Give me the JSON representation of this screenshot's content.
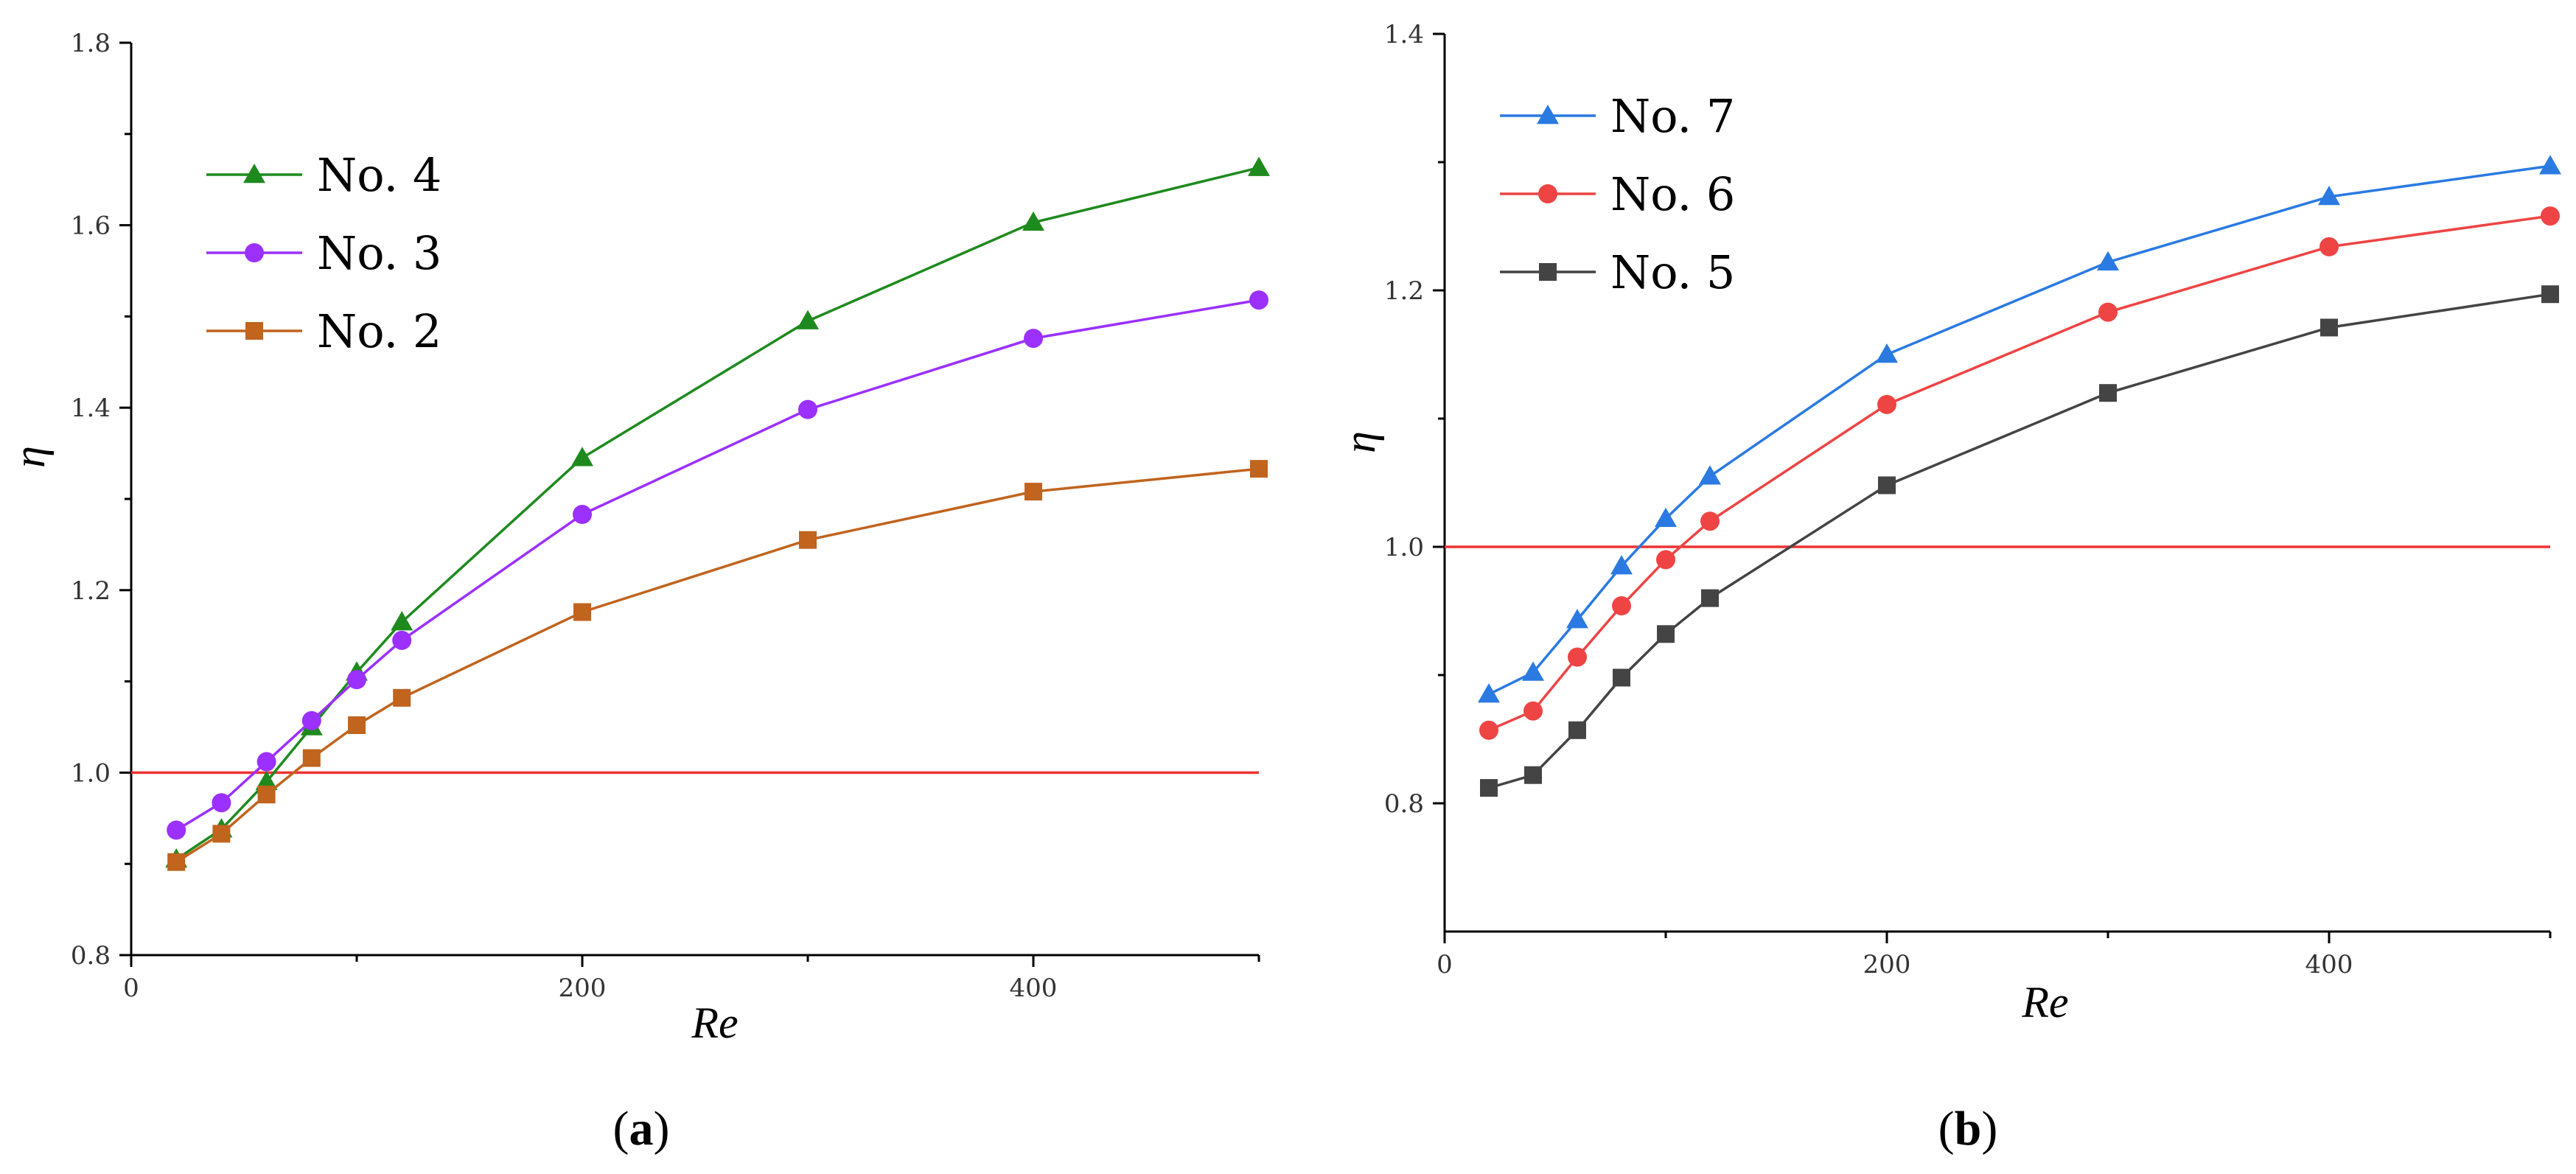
{
  "chart_data": [
    {
      "type": "line",
      "caption_prefix": "(",
      "caption_letter": "a",
      "caption_suffix": ")",
      "xlabel": "Re",
      "ylabel": "η",
      "xlim": [
        0,
        500
      ],
      "ylim": [
        0.8,
        1.8
      ],
      "xticks": [
        0,
        200,
        400
      ],
      "xtick_labels": [
        "0",
        "200",
        "400"
      ],
      "yticks": [
        0.8,
        1.0,
        1.2,
        1.4,
        1.6,
        1.8
      ],
      "ytick_labels": [
        "0.8",
        "1.0",
        "1.2",
        "1.4",
        "1.6",
        "1.8"
      ],
      "reference_line": {
        "y": 1.0,
        "color": "#ee3333"
      },
      "legend_position": "top-left",
      "x": [
        20,
        40,
        60,
        80,
        100,
        120,
        200,
        300,
        400,
        500
      ],
      "series": [
        {
          "name": "No. 4",
          "marker": "triangle",
          "color": "#1e8a1e",
          "values": [
            0.905,
            0.938,
            0.99,
            1.05,
            1.11,
            1.165,
            1.345,
            1.495,
            1.603,
            1.663
          ]
        },
        {
          "name": "No. 3",
          "marker": "circle",
          "color": "#9b30ff",
          "values": [
            0.937,
            0.967,
            1.012,
            1.057,
            1.102,
            1.145,
            1.283,
            1.398,
            1.476,
            1.518
          ]
        },
        {
          "name": "No. 2",
          "marker": "square",
          "color": "#c0641e",
          "values": [
            0.902,
            0.933,
            0.976,
            1.016,
            1.052,
            1.082,
            1.176,
            1.255,
            1.308,
            1.333
          ]
        }
      ]
    },
    {
      "type": "line",
      "caption_prefix": "(",
      "caption_letter": "b",
      "caption_suffix": ")",
      "xlabel": "Re",
      "ylabel": "η",
      "xlim": [
        0,
        500
      ],
      "ylim": [
        0.7,
        1.4
      ],
      "xticks": [
        0,
        200,
        400
      ],
      "xtick_labels": [
        "0",
        "200",
        "400"
      ],
      "yticks": [
        0.8,
        1.0,
        1.2,
        1.4
      ],
      "ytick_labels": [
        "0.8",
        "1.0",
        "1.2",
        "1.4"
      ],
      "reference_line": {
        "y": 1.0,
        "color": "#ee3333"
      },
      "legend_position": "top-left",
      "x": [
        20,
        40,
        60,
        80,
        100,
        120,
        200,
        300,
        400,
        500
      ],
      "series": [
        {
          "name": "No. 7",
          "marker": "triangle",
          "color": "#2a7ae2",
          "values": [
            0.885,
            0.902,
            0.943,
            0.985,
            1.022,
            1.055,
            1.15,
            1.222,
            1.273,
            1.297
          ]
        },
        {
          "name": "No. 6",
          "marker": "circle",
          "color": "#ee4444",
          "values": [
            0.857,
            0.872,
            0.914,
            0.954,
            0.99,
            1.02,
            1.111,
            1.183,
            1.234,
            1.258
          ]
        },
        {
          "name": "No. 5",
          "marker": "square",
          "color": "#444444",
          "values": [
            0.812,
            0.822,
            0.857,
            0.898,
            0.932,
            0.96,
            1.048,
            1.12,
            1.171,
            1.197
          ]
        }
      ]
    }
  ]
}
